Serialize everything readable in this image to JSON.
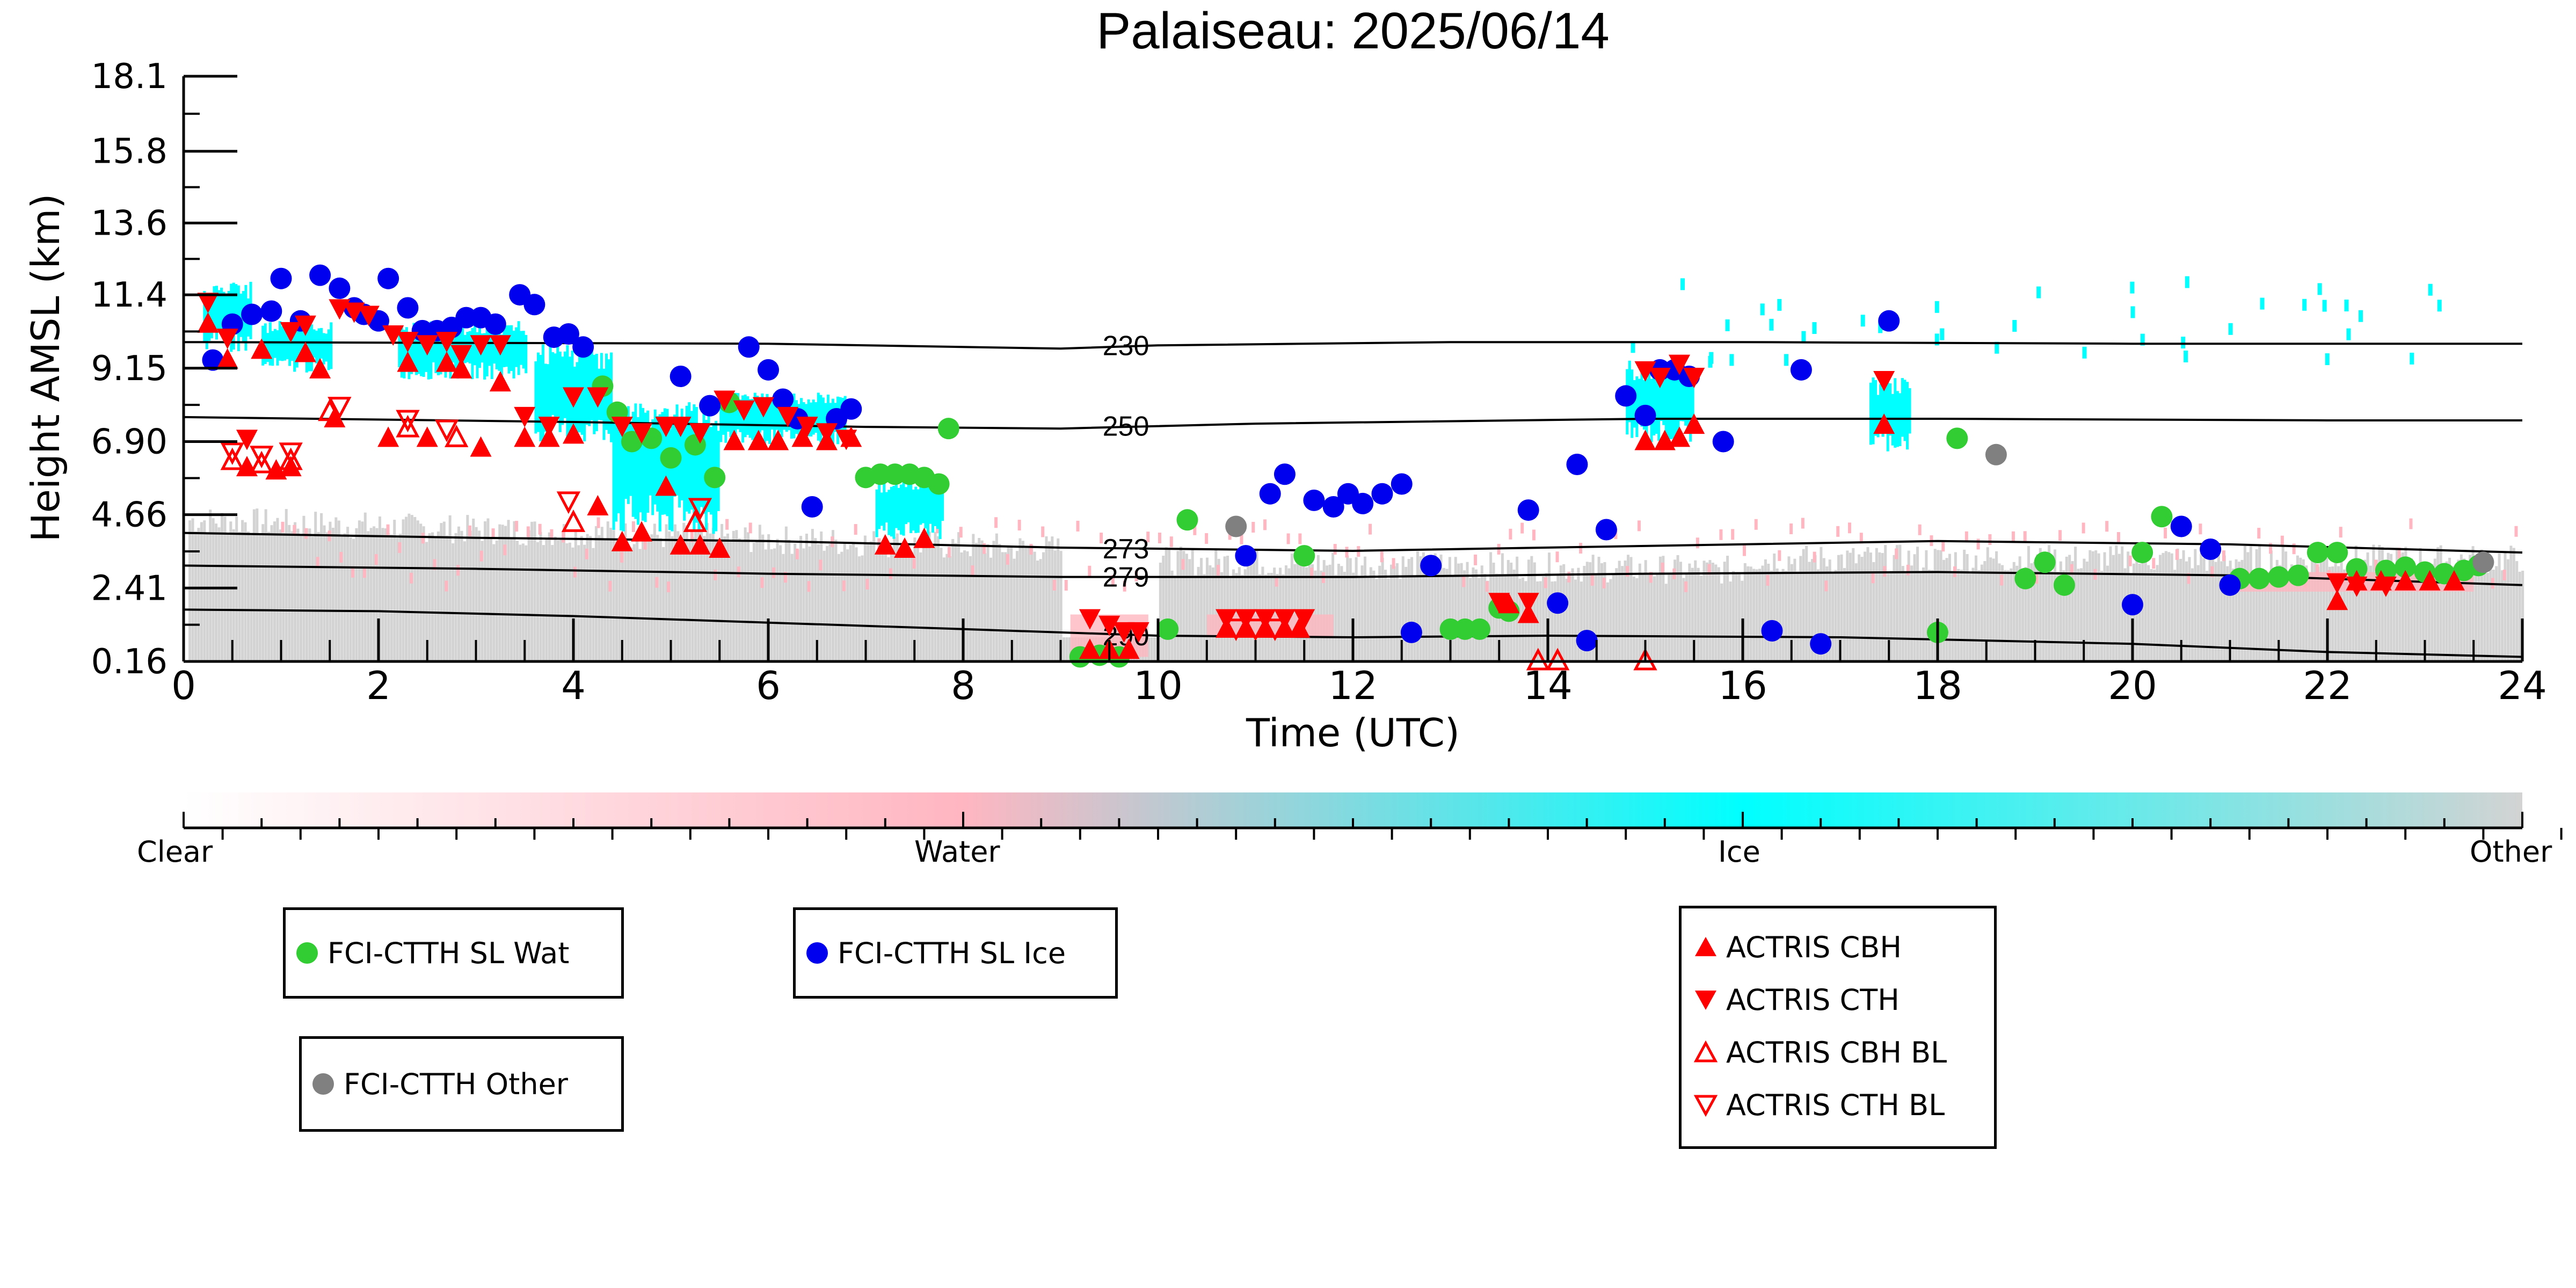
{
  "chart_data": {
    "type": "scatter",
    "title": "Palaiseau: 2025/06/14",
    "xlabel": "Time (UTC)",
    "ylabel": "Height AMSL (km)",
    "xlim": [
      0,
      24
    ],
    "ylim": [
      0.16,
      18.1
    ],
    "x_ticks": [
      "0",
      "2",
      "4",
      "6",
      "8",
      "10",
      "12",
      "14",
      "16",
      "18",
      "20",
      "22",
      "24"
    ],
    "y_ticks": [
      "0.16",
      "2.41",
      "4.66",
      "6.90",
      "9.15",
      "11.4",
      "13.6",
      "15.8",
      "18.1"
    ],
    "grid": false,
    "background_classification": {
      "colorbar_labels": [
        "Clear",
        "Water",
        "Ice",
        "Other"
      ],
      "colors": {
        "clear": "#ffffff",
        "water": "#ffb6c1",
        "ice": "#00ffff",
        "other": "#d3d3d3"
      }
    },
    "isotherms": [
      {
        "label": "230",
        "points": [
          [
            0,
            9.95
          ],
          [
            6,
            9.9
          ],
          [
            9,
            9.75
          ],
          [
            10,
            9.85
          ],
          [
            13,
            9.95
          ],
          [
            16,
            9.95
          ],
          [
            20,
            9.9
          ],
          [
            24,
            9.9
          ]
        ]
      },
      {
        "label": "250",
        "points": [
          [
            0,
            7.65
          ],
          [
            4,
            7.5
          ],
          [
            7,
            7.35
          ],
          [
            9,
            7.3
          ],
          [
            11,
            7.45
          ],
          [
            15,
            7.6
          ],
          [
            18,
            7.6
          ],
          [
            22,
            7.55
          ],
          [
            24,
            7.55
          ]
        ]
      },
      {
        "label": "273",
        "points": [
          [
            0,
            4.1
          ],
          [
            3,
            3.95
          ],
          [
            6,
            3.85
          ],
          [
            9,
            3.65
          ],
          [
            12,
            3.55
          ],
          [
            15,
            3.7
          ],
          [
            18,
            3.85
          ],
          [
            21,
            3.75
          ],
          [
            24,
            3.5
          ]
        ]
      },
      {
        "label": "279",
        "points": [
          [
            0,
            3.1
          ],
          [
            3,
            3.0
          ],
          [
            6,
            2.85
          ],
          [
            9,
            2.75
          ],
          [
            12,
            2.75
          ],
          [
            15,
            2.85
          ],
          [
            18,
            2.9
          ],
          [
            21,
            2.8
          ],
          [
            24,
            2.5
          ]
        ]
      },
      {
        "label": "290",
        "points": [
          [
            0,
            1.75
          ],
          [
            2,
            1.7
          ],
          [
            4,
            1.55
          ],
          [
            6,
            1.35
          ],
          [
            8,
            1.15
          ],
          [
            10,
            0.95
          ],
          [
            12,
            0.9
          ],
          [
            14,
            0.95
          ],
          [
            17,
            0.9
          ],
          [
            20,
            0.7
          ],
          [
            22,
            0.45
          ],
          [
            24,
            0.3
          ]
        ]
      }
    ],
    "series": [
      {
        "name": "FCI-CTTH SL Wat",
        "color": "#32cd32",
        "marker": "circle",
        "points": [
          [
            4.3,
            8.6
          ],
          [
            4.45,
            7.8
          ],
          [
            4.6,
            6.9
          ],
          [
            4.8,
            7.0
          ],
          [
            5.0,
            6.4
          ],
          [
            5.25,
            6.8
          ],
          [
            5.45,
            5.8
          ],
          [
            5.6,
            8.1
          ],
          [
            7.0,
            5.8
          ],
          [
            7.15,
            5.9
          ],
          [
            7.3,
            5.9
          ],
          [
            7.45,
            5.9
          ],
          [
            7.6,
            5.8
          ],
          [
            7.75,
            5.6
          ],
          [
            7.85,
            7.3
          ],
          [
            9.2,
            0.3
          ],
          [
            9.4,
            0.35
          ],
          [
            9.6,
            0.3
          ],
          [
            10.1,
            1.15
          ],
          [
            10.3,
            4.5
          ],
          [
            11.5,
            3.4
          ],
          [
            13.0,
            1.15
          ],
          [
            13.15,
            1.15
          ],
          [
            13.3,
            1.15
          ],
          [
            13.5,
            1.8
          ],
          [
            13.6,
            1.7
          ],
          [
            18.0,
            1.05
          ],
          [
            18.2,
            7.0
          ],
          [
            18.9,
            2.7
          ],
          [
            19.1,
            3.2
          ],
          [
            19.3,
            2.5
          ],
          [
            20.1,
            3.5
          ],
          [
            20.3,
            4.6
          ],
          [
            21.1,
            2.7
          ],
          [
            21.3,
            2.7
          ],
          [
            21.5,
            2.75
          ],
          [
            21.7,
            2.8
          ],
          [
            21.9,
            3.5
          ],
          [
            22.1,
            3.5
          ],
          [
            22.3,
            3.0
          ],
          [
            22.6,
            2.95
          ],
          [
            22.8,
            3.05
          ],
          [
            23.0,
            2.9
          ],
          [
            23.2,
            2.85
          ],
          [
            23.4,
            2.95
          ],
          [
            23.55,
            3.1
          ]
        ]
      },
      {
        "name": "FCI-CTTH SL Ice",
        "color": "#0000ee",
        "marker": "circle",
        "points": [
          [
            0.3,
            9.4
          ],
          [
            0.5,
            10.5
          ],
          [
            0.7,
            10.8
          ],
          [
            0.9,
            10.9
          ],
          [
            1.0,
            11.9
          ],
          [
            1.2,
            10.6
          ],
          [
            1.4,
            12.0
          ],
          [
            1.6,
            11.6
          ],
          [
            1.75,
            11.0
          ],
          [
            1.85,
            10.8
          ],
          [
            2.0,
            10.6
          ],
          [
            2.1,
            11.9
          ],
          [
            2.3,
            11.0
          ],
          [
            2.45,
            10.3
          ],
          [
            2.6,
            10.3
          ],
          [
            2.75,
            10.4
          ],
          [
            2.9,
            10.7
          ],
          [
            3.05,
            10.7
          ],
          [
            3.2,
            10.5
          ],
          [
            3.45,
            11.4
          ],
          [
            3.6,
            11.1
          ],
          [
            3.8,
            10.1
          ],
          [
            3.95,
            10.2
          ],
          [
            4.1,
            9.8
          ],
          [
            5.1,
            8.9
          ],
          [
            5.4,
            8.0
          ],
          [
            5.8,
            9.8
          ],
          [
            6.0,
            9.1
          ],
          [
            6.15,
            8.2
          ],
          [
            6.3,
            7.6
          ],
          [
            6.45,
            4.9
          ],
          [
            6.7,
            7.6
          ],
          [
            6.85,
            7.9
          ],
          [
            10.9,
            3.4
          ],
          [
            11.15,
            5.3
          ],
          [
            11.3,
            5.9
          ],
          [
            11.6,
            5.1
          ],
          [
            11.8,
            4.9
          ],
          [
            11.95,
            5.3
          ],
          [
            12.1,
            5.0
          ],
          [
            12.3,
            5.3
          ],
          [
            12.5,
            5.6
          ],
          [
            12.6,
            1.05
          ],
          [
            12.8,
            3.1
          ],
          [
            13.8,
            4.8
          ],
          [
            14.1,
            1.95
          ],
          [
            14.3,
            6.2
          ],
          [
            14.4,
            0.8
          ],
          [
            14.6,
            4.2
          ],
          [
            14.8,
            8.3
          ],
          [
            15.0,
            7.7
          ],
          [
            15.15,
            9.1
          ],
          [
            15.3,
            9.1
          ],
          [
            15.45,
            8.9
          ],
          [
            15.8,
            6.9
          ],
          [
            16.3,
            1.1
          ],
          [
            16.6,
            9.1
          ],
          [
            16.8,
            0.7
          ],
          [
            17.5,
            10.6
          ],
          [
            20.0,
            1.9
          ],
          [
            20.5,
            4.3
          ],
          [
            20.8,
            3.6
          ],
          [
            21.0,
            2.5
          ]
        ]
      },
      {
        "name": "FCI-CTTH Other",
        "color": "#808080",
        "marker": "circle",
        "points": [
          [
            10.8,
            4.3
          ],
          [
            18.6,
            6.5
          ],
          [
            23.6,
            3.2
          ]
        ]
      },
      {
        "name": "ACTRIS CBH",
        "color": "#ff0000",
        "marker": "triangle-up",
        "points": [
          [
            0.25,
            10.5
          ],
          [
            0.45,
            9.4
          ],
          [
            0.65,
            6.1
          ],
          [
            0.8,
            9.7
          ],
          [
            0.95,
            6.0
          ],
          [
            1.1,
            6.1
          ],
          [
            1.25,
            9.6
          ],
          [
            1.4,
            9.1
          ],
          [
            1.55,
            7.6
          ],
          [
            2.1,
            7.0
          ],
          [
            2.3,
            9.3
          ],
          [
            2.5,
            7.0
          ],
          [
            2.7,
            9.3
          ],
          [
            2.85,
            9.1
          ],
          [
            3.05,
            6.7
          ],
          [
            3.25,
            8.7
          ],
          [
            3.5,
            7.0
          ],
          [
            3.75,
            7.0
          ],
          [
            4.0,
            7.1
          ],
          [
            4.25,
            4.9
          ],
          [
            4.5,
            3.8
          ],
          [
            4.7,
            4.1
          ],
          [
            4.95,
            5.5
          ],
          [
            5.1,
            3.7
          ],
          [
            5.3,
            3.7
          ],
          [
            5.5,
            3.6
          ],
          [
            5.65,
            6.9
          ],
          [
            5.9,
            6.9
          ],
          [
            6.1,
            6.9
          ],
          [
            6.35,
            7.0
          ],
          [
            6.6,
            6.9
          ],
          [
            6.85,
            7.0
          ],
          [
            7.2,
            3.7
          ],
          [
            7.4,
            3.6
          ],
          [
            7.6,
            3.9
          ],
          [
            9.3,
            0.5
          ],
          [
            9.5,
            0.5
          ],
          [
            9.7,
            0.5
          ],
          [
            10.7,
            1.15
          ],
          [
            10.9,
            1.15
          ],
          [
            11.1,
            1.15
          ],
          [
            11.3,
            1.15
          ],
          [
            11.45,
            1.15
          ],
          [
            13.6,
            1.9
          ],
          [
            13.8,
            1.6
          ],
          [
            15.0,
            6.9
          ],
          [
            15.2,
            6.9
          ],
          [
            15.35,
            7.0
          ],
          [
            15.5,
            7.4
          ],
          [
            17.45,
            7.4
          ],
          [
            22.1,
            2.0
          ],
          [
            22.3,
            2.6
          ],
          [
            22.55,
            2.6
          ],
          [
            22.8,
            2.6
          ],
          [
            23.05,
            2.6
          ],
          [
            23.3,
            2.6
          ]
        ]
      },
      {
        "name": "ACTRIS CTH",
        "color": "#ff0000",
        "marker": "triangle-down",
        "points": [
          [
            0.25,
            11.2
          ],
          [
            0.45,
            10.1
          ],
          [
            0.65,
            7.0
          ],
          [
            1.1,
            10.3
          ],
          [
            1.25,
            10.5
          ],
          [
            1.6,
            11.0
          ],
          [
            1.75,
            10.9
          ],
          [
            1.9,
            10.8
          ],
          [
            2.15,
            10.2
          ],
          [
            2.3,
            10.0
          ],
          [
            2.5,
            9.9
          ],
          [
            2.7,
            10.0
          ],
          [
            2.85,
            9.6
          ],
          [
            3.05,
            9.9
          ],
          [
            3.25,
            9.9
          ],
          [
            3.5,
            7.7
          ],
          [
            3.75,
            7.4
          ],
          [
            4.0,
            8.3
          ],
          [
            4.25,
            8.3
          ],
          [
            4.5,
            7.4
          ],
          [
            4.7,
            7.2
          ],
          [
            4.95,
            7.4
          ],
          [
            5.1,
            7.4
          ],
          [
            5.3,
            7.2
          ],
          [
            5.55,
            8.2
          ],
          [
            5.75,
            7.9
          ],
          [
            5.95,
            8.0
          ],
          [
            6.2,
            7.7
          ],
          [
            6.4,
            7.4
          ],
          [
            6.6,
            7.2
          ],
          [
            6.8,
            7.0
          ],
          [
            9.3,
            1.5
          ],
          [
            9.5,
            1.3
          ],
          [
            9.65,
            1.1
          ],
          [
            9.8,
            1.1
          ],
          [
            10.7,
            1.5
          ],
          [
            10.9,
            1.5
          ],
          [
            11.1,
            1.5
          ],
          [
            11.3,
            1.5
          ],
          [
            11.5,
            1.5
          ],
          [
            13.5,
            2.0
          ],
          [
            13.8,
            2.0
          ],
          [
            15.0,
            9.1
          ],
          [
            15.15,
            8.9
          ],
          [
            15.35,
            9.3
          ],
          [
            15.5,
            8.9
          ],
          [
            17.45,
            8.8
          ],
          [
            22.1,
            2.6
          ],
          [
            22.3,
            2.5
          ],
          [
            22.6,
            2.5
          ]
        ]
      },
      {
        "name": "ACTRIS CBH BL",
        "color": "#ff0000",
        "marker": "triangle-up-open",
        "points": [
          [
            0.5,
            6.3
          ],
          [
            0.8,
            6.2
          ],
          [
            1.1,
            6.3
          ],
          [
            1.5,
            7.8
          ],
          [
            2.3,
            7.3
          ],
          [
            2.8,
            7.0
          ],
          [
            4.0,
            4.4
          ],
          [
            5.25,
            4.4
          ],
          [
            13.9,
            0.16
          ],
          [
            14.1,
            0.16
          ],
          [
            15.0,
            0.16
          ]
        ]
      },
      {
        "name": "ACTRIS CTH BL",
        "color": "#ff0000",
        "marker": "triangle-down-open",
        "points": [
          [
            0.5,
            6.6
          ],
          [
            0.8,
            6.5
          ],
          [
            1.1,
            6.6
          ],
          [
            1.6,
            8.0
          ],
          [
            2.3,
            7.6
          ],
          [
            2.7,
            7.3
          ],
          [
            3.95,
            5.1
          ],
          [
            5.3,
            4.9
          ],
          [
            10.8,
            1.2
          ],
          [
            11.0,
            1.2
          ],
          [
            11.2,
            1.2
          ]
        ]
      }
    ],
    "legend_placement": "below"
  }
}
